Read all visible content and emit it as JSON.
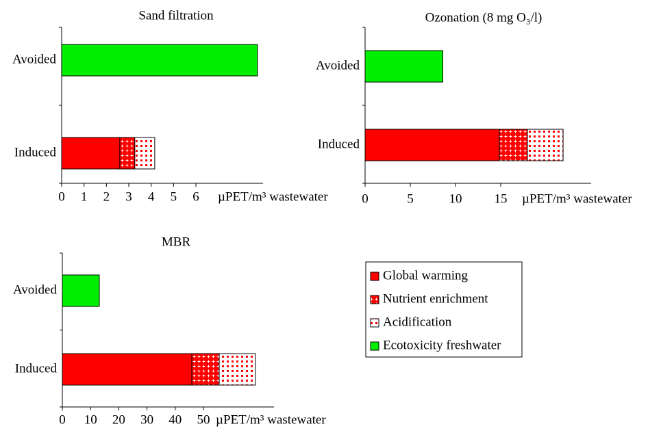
{
  "chart_data": [
    {
      "type": "bar",
      "orientation": "horizontal",
      "stacked": true,
      "title": "Sand filtration",
      "categories": [
        "Avoided",
        "Induced"
      ],
      "x_label": "µPET/m³ wastewater",
      "series": [
        {
          "name": "Global warming",
          "color": "#ff0000",
          "pattern": "solid",
          "values": [
            null,
            2.6
          ]
        },
        {
          "name": "Nutrient enrichment",
          "color": "#ff0000",
          "pattern": "cross",
          "values": [
            null,
            0.67
          ]
        },
        {
          "name": "Acidification",
          "color": "#ff0000",
          "pattern": "dots",
          "values": [
            null,
            0.89
          ]
        },
        {
          "name": "Ecotoxicity freshwater",
          "color": "#00ee00",
          "pattern": "solid",
          "values": [
            8.75,
            null
          ]
        }
      ],
      "xlim": [
        0,
        9
      ],
      "xticks": [
        0,
        1,
        2,
        3,
        4,
        5,
        6
      ]
    },
    {
      "type": "bar",
      "orientation": "horizontal",
      "stacked": true,
      "title": "Ozonation (8 mg O₃/l)",
      "categories": [
        "Avoided",
        "Induced"
      ],
      "x_label": "µPET/m³ wastewater",
      "series": [
        {
          "values": [
            null,
            14.85
          ]
        },
        {
          "values": [
            null,
            3.1
          ]
        },
        {
          "values": [
            null,
            3.95
          ]
        },
        {
          "values": [
            8.6,
            null
          ]
        }
      ],
      "xlim": [
        0,
        25
      ],
      "xticks": [
        0,
        5,
        10,
        15
      ]
    },
    {
      "type": "bar",
      "orientation": "horizontal",
      "stacked": true,
      "title": "MBR",
      "categories": [
        "Avoided",
        "Induced"
      ],
      "x_label": "µPET/m³ wastewater",
      "series": [
        {
          "values": [
            null,
            45.9
          ]
        },
        {
          "values": [
            null,
            9.7
          ]
        },
        {
          "values": [
            null,
            12.8
          ]
        },
        {
          "values": [
            13.1,
            null
          ]
        }
      ],
      "xlim": [
        0,
        75
      ],
      "xticks": [
        0,
        10,
        20,
        30,
        40,
        50
      ]
    }
  ]
}
